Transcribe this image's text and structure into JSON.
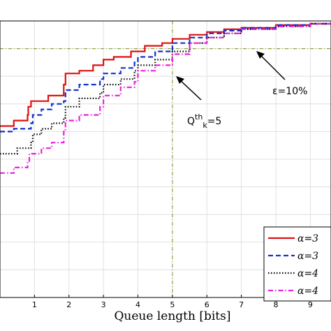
{
  "chart_data": {
    "type": "line",
    "title": "",
    "xlabel": "Queue length [bits]",
    "ylabel": "",
    "xlim": [
      0,
      9.6
    ],
    "ylim": [
      0,
      1
    ],
    "xticks": [
      "1",
      "2",
      "3",
      "4",
      "5",
      "6",
      "7",
      "8",
      "9"
    ],
    "grid": true,
    "legend_position": "bottom-right",
    "legend": [
      "α=3",
      "α=3",
      "α=4",
      "α=4"
    ],
    "annotations": {
      "threshold_x": 5,
      "threshold_label": "Q",
      "threshold_sup": "th",
      "threshold_sub": "k",
      "threshold_value": "=5",
      "epsilon_level": 0.9,
      "epsilon_label": "ε=10%"
    },
    "series": [
      {
        "name": "α=3",
        "color": "#dd1111",
        "dash": "solid",
        "x": [
          0,
          0.4,
          0.8,
          0.82,
          0.9,
          1.4,
          1.85,
          1.9,
          2.3,
          2.7,
          3.0,
          3.3,
          3.8,
          4.2,
          4.7,
          5.0,
          5.5,
          6.0,
          6.5,
          7.0,
          8.0,
          9.0,
          9.6
        ],
        "y": [
          0.62,
          0.64,
          0.66,
          0.69,
          0.71,
          0.73,
          0.77,
          0.81,
          0.82,
          0.84,
          0.86,
          0.87,
          0.89,
          0.91,
          0.92,
          0.935,
          0.95,
          0.96,
          0.97,
          0.975,
          0.985,
          0.99,
          0.99
        ]
      },
      {
        "name": "α=3",
        "color": "#1133cc",
        "dash": "dashed",
        "x": [
          0,
          0.4,
          0.9,
          0.95,
          1.2,
          1.5,
          1.85,
          1.9,
          2.3,
          2.9,
          3.0,
          3.5,
          3.9,
          4.0,
          4.5,
          5.0,
          5.5,
          6.0,
          6.5,
          7.0,
          8.0,
          9.0,
          9.6
        ],
        "y": [
          0.6,
          0.61,
          0.63,
          0.66,
          0.68,
          0.7,
          0.71,
          0.75,
          0.77,
          0.79,
          0.81,
          0.83,
          0.85,
          0.87,
          0.89,
          0.92,
          0.94,
          0.955,
          0.965,
          0.975,
          0.985,
          0.99,
          0.99
        ]
      },
      {
        "name": "α=4",
        "color": "#000000",
        "dash": "dotted",
        "x": [
          0,
          0.5,
          0.9,
          0.95,
          1.2,
          1.5,
          1.85,
          1.9,
          2.3,
          2.9,
          3.0,
          3.5,
          3.9,
          4.0,
          4.5,
          5.0,
          5.5,
          6.0,
          6.5,
          7.0,
          8.0,
          9.0,
          9.6
        ],
        "y": [
          0.52,
          0.54,
          0.56,
          0.59,
          0.61,
          0.63,
          0.65,
          0.69,
          0.72,
          0.74,
          0.77,
          0.79,
          0.82,
          0.84,
          0.86,
          0.89,
          0.92,
          0.94,
          0.955,
          0.97,
          0.98,
          0.99,
          0.99
        ]
      },
      {
        "name": "α=4",
        "color": "#ee22dd",
        "dash": "dashdot",
        "x": [
          0,
          0.4,
          0.8,
          0.85,
          1.2,
          1.5,
          1.85,
          1.9,
          2.3,
          2.9,
          3.0,
          3.5,
          3.9,
          4.0,
          4.5,
          5.0,
          5.5,
          6.0,
          6.5,
          7.0,
          8.0,
          9.0,
          9.6
        ],
        "y": [
          0.45,
          0.47,
          0.49,
          0.52,
          0.54,
          0.56,
          0.6,
          0.64,
          0.66,
          0.69,
          0.73,
          0.76,
          0.78,
          0.82,
          0.84,
          0.88,
          0.92,
          0.94,
          0.955,
          0.97,
          0.98,
          0.99,
          0.99
        ]
      }
    ]
  }
}
